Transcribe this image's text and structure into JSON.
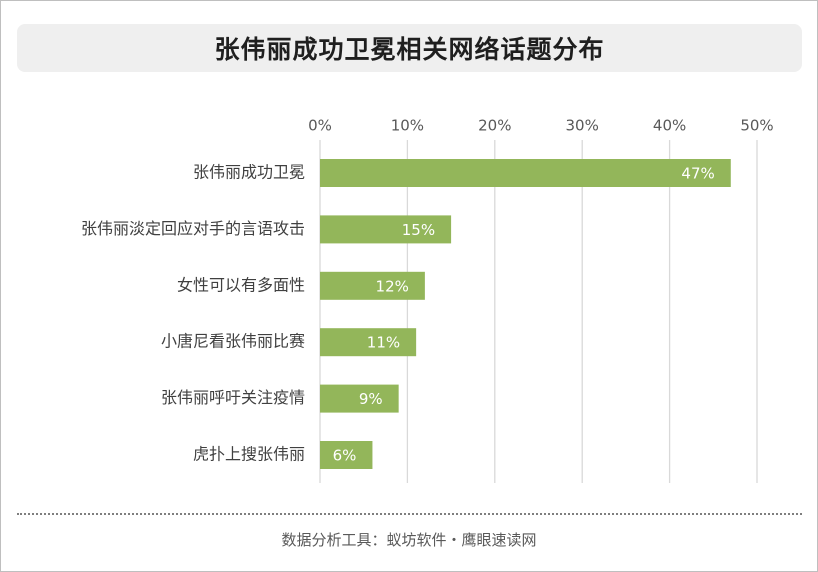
{
  "title": "张伟丽成功卫冕相关网络话题分布",
  "source": "数据分析工具：蚁坊软件・鹰眼速读网",
  "colors": {
    "bar": "#93b65a",
    "grid": "#d9d9d9",
    "tick_text": "#595959",
    "category_text": "#404040",
    "label_text": "#ffffff"
  },
  "chart_data": {
    "type": "bar",
    "orientation": "horizontal",
    "categories": [
      "张伟丽成功卫冕",
      "张伟丽淡定回应对手的言语攻击",
      "女性可以有多面性",
      "小唐尼看张伟丽比赛",
      "张伟丽呼吁关注疫情",
      "虎扑上搜张伟丽"
    ],
    "values": [
      47,
      15,
      12,
      11,
      9,
      6
    ],
    "value_labels": [
      "47%",
      "15%",
      "12%",
      "11%",
      "9%",
      "6%"
    ],
    "xlim": [
      0,
      50
    ],
    "xticks": [
      0,
      10,
      20,
      30,
      40,
      50
    ],
    "xtick_labels": [
      "0%",
      "10%",
      "20%",
      "30%",
      "40%",
      "50%"
    ],
    "x_axis_position": "top",
    "grid": true,
    "legend": "none"
  }
}
